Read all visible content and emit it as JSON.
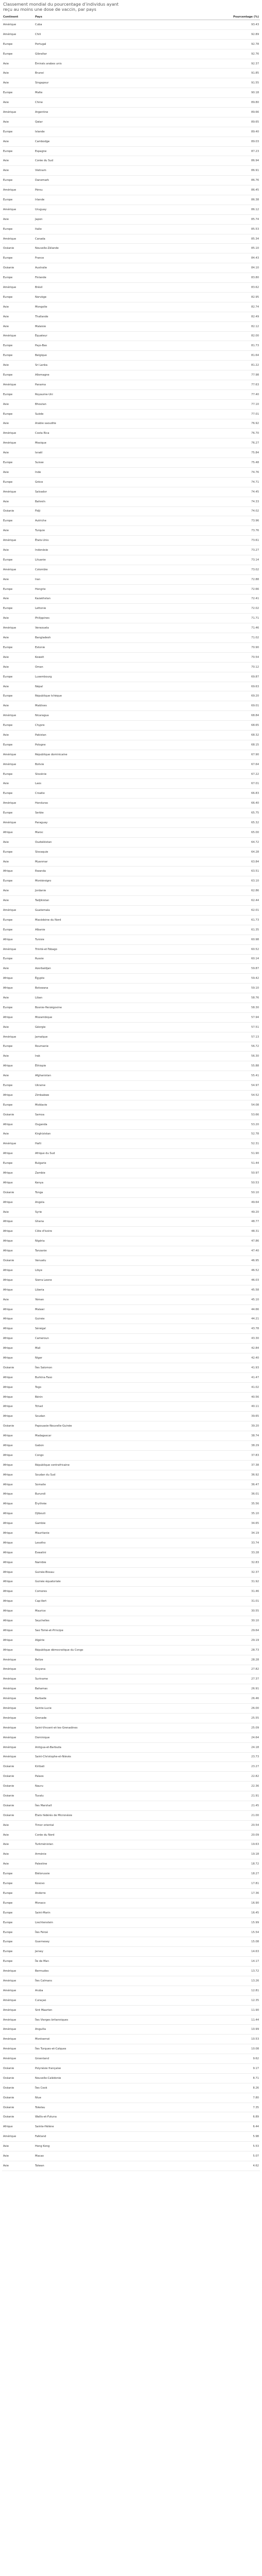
{
  "title": "Classement mondial du pourcentage d’individus ayant reçu au moins une dose de vaccin, par pays",
  "table": {
    "headers": [
      "Continent",
      "Pays",
      "Pourcentage (%)"
    ],
    "rows": [
      [
        "Amérique",
        "Cuba",
        "93.43"
      ],
      [
        "Amérique",
        "Chili",
        "92.89"
      ],
      [
        "Europe",
        "Portugal",
        "92.78"
      ],
      [
        "Europe",
        "Gibraltar",
        "92.76"
      ],
      [
        "Asie",
        "Émirats arabes unis",
        "92.37"
      ],
      [
        "Asie",
        "Brunei",
        "91.85"
      ],
      [
        "Asie",
        "Singapour",
        "91.55"
      ],
      [
        "Europe",
        "Malte",
        "90.18"
      ],
      [
        "Asie",
        "Chine",
        "89.80"
      ],
      [
        "Amérique",
        "Argentine",
        "89.66"
      ],
      [
        "Asie",
        "Qatar",
        "89.65"
      ],
      [
        "Europe",
        "Islande",
        "89.40"
      ],
      [
        "Asie",
        "Cambodge",
        "89.03"
      ],
      [
        "Europe",
        "Espagne",
        "87.23"
      ],
      [
        "Asie",
        "Corée du Sud",
        "86.94"
      ],
      [
        "Asie",
        "Vietnam",
        "86.91"
      ],
      [
        "Europe",
        "Danemark",
        "86.76"
      ],
      [
        "Amérique",
        "Pérou",
        "86.45"
      ],
      [
        "Europe",
        "Irlande",
        "86.38"
      ],
      [
        "Amérique",
        "Uruguay",
        "86.12"
      ],
      [
        "Asie",
        "Japon",
        "85.74"
      ],
      [
        "Europe",
        "Italie",
        "85.53"
      ],
      [
        "Amérique",
        "Canada",
        "85.34"
      ],
      [
        "Océanie",
        "Nouvelle-Zélande",
        "85.10"
      ],
      [
        "Europe",
        "France",
        "84.43"
      ],
      [
        "Océanie",
        "Australie",
        "84.10"
      ],
      [
        "Europe",
        "Finlande",
        "83.80"
      ],
      [
        "Amérique",
        "Brésil",
        "83.62"
      ],
      [
        "Europe",
        "Norvège",
        "82.95"
      ],
      [
        "Asie",
        "Mongolie",
        "82.74"
      ],
      [
        "Asie",
        "Thaïlande",
        "82.49"
      ],
      [
        "Asie",
        "Malaisie",
        "82.12"
      ],
      [
        "Amérique",
        "Équateur",
        "82.00"
      ],
      [
        "Europe",
        "Pays-Bas",
        "81.73"
      ],
      [
        "Europe",
        "Belgique",
        "81.64"
      ],
      [
        "Asie",
        "Sri Lanka",
        "81.22"
      ],
      [
        "Europe",
        "Allemagne",
        "77.98"
      ],
      [
        "Amérique",
        "Panama",
        "77.63"
      ],
      [
        "Europe",
        "Royaume-Uni",
        "77.40"
      ],
      [
        "Asie",
        "Bhoutan",
        "77.10"
      ],
      [
        "Europe",
        "Suède",
        "77.01"
      ],
      [
        "Asie",
        "Arabie saoudite",
        "76.92"
      ],
      [
        "Amérique",
        "Costa Rica",
        "76.70"
      ],
      [
        "Amérique",
        "Mexique",
        "76.27"
      ],
      [
        "Asie",
        "Israël",
        "75.84"
      ],
      [
        "Europe",
        "Suisse",
        "75.48"
      ],
      [
        "Asie",
        "Inde",
        "74.76"
      ],
      [
        "Europe",
        "Grèce",
        "74.71"
      ],
      [
        "Amérique",
        "Salvador",
        "74.45"
      ],
      [
        "Asie",
        "Bahreïn",
        "74.33"
      ],
      [
        "Océanie",
        "Fidji",
        "74.02"
      ],
      [
        "Europe",
        "Autriche",
        "73.96"
      ],
      [
        "Asie",
        "Turquie",
        "73.76"
      ],
      [
        "Amérique",
        "États-Unis",
        "73.61"
      ],
      [
        "Asie",
        "Indonésie",
        "73.27"
      ],
      [
        "Europe",
        "Lituanie",
        "73.14"
      ],
      [
        "Amérique",
        "Colombie",
        "73.02"
      ],
      [
        "Asie",
        "Iran",
        "72.88"
      ],
      [
        "Europe",
        "Hongrie",
        "72.66"
      ],
      [
        "Asie",
        "Kazakhstan",
        "72.41"
      ],
      [
        "Europe",
        "Lettonie",
        "72.02"
      ],
      [
        "Asie",
        "Philippines",
        "71.71"
      ],
      [
        "Amérique",
        "Venezuela",
        "71.46"
      ],
      [
        "Asie",
        "Bangladesh",
        "71.02"
      ],
      [
        "Europe",
        "Estonie",
        "70.90"
      ],
      [
        "Asie",
        "Koweït",
        "70.54"
      ],
      [
        "Asie",
        "Oman",
        "70.12"
      ],
      [
        "Europe",
        "Luxembourg",
        "69.87"
      ],
      [
        "Asie",
        "Népal",
        "69.63"
      ],
      [
        "Europe",
        "République tchèque",
        "69.20"
      ],
      [
        "Asie",
        "Maldives",
        "69.01"
      ],
      [
        "Amérique",
        "Nicaragua",
        "68.84"
      ],
      [
        "Europe",
        "Chypre",
        "68.65"
      ],
      [
        "Asie",
        "Pakistan",
        "68.32"
      ],
      [
        "Europe",
        "Pologne",
        "68.15"
      ],
      [
        "Amérique",
        "République dominicaine",
        "67.90"
      ],
      [
        "Amérique",
        "Bolivie",
        "67.64"
      ],
      [
        "Europe",
        "Slovénie",
        "67.22"
      ],
      [
        "Asie",
        "Laos",
        "67.01"
      ],
      [
        "Europe",
        "Croatie",
        "66.83"
      ],
      [
        "Amérique",
        "Honduras",
        "66.40"
      ],
      [
        "Europe",
        "Serbie",
        "65.75"
      ],
      [
        "Amérique",
        "Paraguay",
        "65.32"
      ],
      [
        "Afrique",
        "Maroc",
        "65.00"
      ],
      [
        "Asie",
        "Ouzbékistan",
        "64.72"
      ],
      [
        "Europe",
        "Slovaquie",
        "64.28"
      ],
      [
        "Asie",
        "Myanmar",
        "63.84"
      ],
      [
        "Afrique",
        "Rwanda",
        "63.51"
      ],
      [
        "Europe",
        "Monténégro",
        "63.10"
      ],
      [
        "Asie",
        "Jordanie",
        "62.86"
      ],
      [
        "Asie",
        "Tadjikistan",
        "62.44"
      ],
      [
        "Amérique",
        "Guatemala",
        "62.01"
      ],
      [
        "Europe",
        "Macédoine du Nord",
        "61.73"
      ],
      [
        "Europe",
        "Albanie",
        "61.35"
      ],
      [
        "Afrique",
        "Tunisie",
        "60.98"
      ],
      [
        "Amérique",
        "Trinité-et-Tobago",
        "60.52"
      ],
      [
        "Europe",
        "Russie",
        "60.14"
      ],
      [
        "Asie",
        "Azerbaïdjan",
        "59.87"
      ],
      [
        "Afrique",
        "Égypte",
        "59.42"
      ],
      [
        "Afrique",
        "Botswana",
        "59.10"
      ],
      [
        "Asie",
        "Liban",
        "58.76"
      ],
      [
        "Europe",
        "Bosnie-Herzégovine",
        "58.30"
      ],
      [
        "Afrique",
        "Mozambique",
        "57.94"
      ],
      [
        "Asie",
        "Géorgie",
        "57.51"
      ],
      [
        "Amérique",
        "Jamaïque",
        "57.13"
      ],
      [
        "Europe",
        "Roumanie",
        "56.72"
      ],
      [
        "Asie",
        "Irak",
        "56.30"
      ],
      [
        "Afrique",
        "Éthiopie",
        "55.88"
      ],
      [
        "Asie",
        "Afghanistan",
        "55.41"
      ],
      [
        "Europe",
        "Ukraine",
        "54.97"
      ],
      [
        "Afrique",
        "Zimbabwe",
        "54.52"
      ],
      [
        "Europe",
        "Moldavie",
        "54.08"
      ],
      [
        "Océanie",
        "Samoa",
        "53.66"
      ],
      [
        "Afrique",
        "Ouganda",
        "53.20"
      ],
      [
        "Asie",
        "Kirghizistan",
        "52.78"
      ],
      [
        "Amérique",
        "Haïti",
        "52.31"
      ],
      [
        "Afrique",
        "Afrique du Sud",
        "51.90"
      ],
      [
        "Europe",
        "Bulgarie",
        "51.44"
      ],
      [
        "Afrique",
        "Zambie",
        "50.97"
      ],
      [
        "Afrique",
        "Kenya",
        "50.53"
      ],
      [
        "Océanie",
        "Tonga",
        "50.10"
      ],
      [
        "Afrique",
        "Angola",
        "49.64"
      ],
      [
        "Asie",
        "Syrie",
        "49.20"
      ],
      [
        "Afrique",
        "Ghana",
        "48.77"
      ],
      [
        "Afrique",
        "Côte d'Ivoire",
        "48.31"
      ],
      [
        "Afrique",
        "Nigéria",
        "47.86"
      ],
      [
        "Afrique",
        "Tanzanie",
        "47.40"
      ],
      [
        "Océanie",
        "Vanuatu",
        "46.95"
      ],
      [
        "Afrique",
        "Libye",
        "46.52"
      ],
      [
        "Afrique",
        "Sierra Leone",
        "46.03"
      ],
      [
        "Afrique",
        "Liberia",
        "45.58"
      ],
      [
        "Asie",
        "Yémen",
        "45.10"
      ],
      [
        "Afrique",
        "Malawi",
        "44.66"
      ],
      [
        "Afrique",
        "Guinée",
        "44.21"
      ],
      [
        "Afrique",
        "Sénégal",
        "43.78"
      ],
      [
        "Afrique",
        "Cameroun",
        "43.30"
      ],
      [
        "Afrique",
        "Mali",
        "42.84"
      ],
      [
        "Afrique",
        "Niger",
        "42.40"
      ],
      [
        "Océanie",
        "Îles Salomon",
        "41.93"
      ],
      [
        "Afrique",
        "Burkina Faso",
        "41.47"
      ],
      [
        "Afrique",
        "Togo",
        "41.02"
      ],
      [
        "Afrique",
        "Bénin",
        "40.56"
      ],
      [
        "Afrique",
        "Tchad",
        "40.11"
      ],
      [
        "Afrique",
        "Soudan",
        "39.65"
      ],
      [
        "Océanie",
        "Papouasie-Nouvelle-Guinée",
        "39.20"
      ],
      [
        "Afrique",
        "Madagascar",
        "38.74"
      ],
      [
        "Afrique",
        "Gabon",
        "38.29"
      ],
      [
        "Afrique",
        "Congo",
        "37.83"
      ],
      [
        "Afrique",
        "République centrafricaine",
        "37.38"
      ],
      [
        "Afrique",
        "Soudan du Sud",
        "36.92"
      ],
      [
        "Afrique",
        "Somalie",
        "36.47"
      ],
      [
        "Afrique",
        "Burundi",
        "36.01"
      ],
      [
        "Afrique",
        "Érythrée",
        "35.56"
      ],
      [
        "Afrique",
        "Djibouti",
        "35.10"
      ],
      [
        "Afrique",
        "Gambie",
        "34.65"
      ],
      [
        "Afrique",
        "Mauritanie",
        "34.19"
      ],
      [
        "Afrique",
        "Lesotho",
        "33.74"
      ],
      [
        "Afrique",
        "Eswatini",
        "33.28"
      ],
      [
        "Afrique",
        "Namibie",
        "32.83"
      ],
      [
        "Afrique",
        "Guinée-Bissau",
        "32.37"
      ],
      [
        "Afrique",
        "Guinée équatoriale",
        "31.92"
      ],
      [
        "Afrique",
        "Comores",
        "31.46"
      ],
      [
        "Afrique",
        "Cap-Vert",
        "31.01"
      ],
      [
        "Afrique",
        "Maurice",
        "30.55"
      ],
      [
        "Afrique",
        "Seychelles",
        "30.10"
      ],
      [
        "Afrique",
        "Sao Tomé-et-Principe",
        "29.64"
      ],
      [
        "Afrique",
        "Algérie",
        "29.19"
      ],
      [
        "Afrique",
        "République démocratique du Congo",
        "28.73"
      ],
      [
        "Amérique",
        "Belize",
        "28.28"
      ],
      [
        "Amérique",
        "Guyana",
        "27.82"
      ],
      [
        "Amérique",
        "Suriname",
        "27.37"
      ],
      [
        "Amérique",
        "Bahamas",
        "26.91"
      ],
      [
        "Amérique",
        "Barbade",
        "26.46"
      ],
      [
        "Amérique",
        "Sainte-Lucie",
        "26.00"
      ],
      [
        "Amérique",
        "Grenade",
        "25.55"
      ],
      [
        "Amérique",
        "Saint-Vincent-et-les-Grenadines",
        "25.09"
      ],
      [
        "Amérique",
        "Dominique",
        "24.64"
      ],
      [
        "Amérique",
        "Antigua-et-Barbuda",
        "24.18"
      ],
      [
        "Amérique",
        "Saint-Christophe-et-Niévès",
        "23.73"
      ],
      [
        "Océanie",
        "Kiribati",
        "23.27"
      ],
      [
        "Océanie",
        "Palaos",
        "22.82"
      ],
      [
        "Océanie",
        "Nauru",
        "22.36"
      ],
      [
        "Océanie",
        "Tuvalu",
        "21.91"
      ],
      [
        "Océanie",
        "Îles Marshall",
        "21.45"
      ],
      [
        "Océanie",
        "États fédérés de Micronésie",
        "21.00"
      ],
      [
        "Asie",
        "Timor oriental",
        "20.54"
      ],
      [
        "Asie",
        "Corée du Nord",
        "20.09"
      ],
      [
        "Asie",
        "Turkménistan",
        "19.63"
      ],
      [
        "Asie",
        "Arménie",
        "19.18"
      ],
      [
        "Asie",
        "Palestine",
        "18.72"
      ],
      [
        "Europe",
        "Biélorussie",
        "18.27"
      ],
      [
        "Europe",
        "Kosovo",
        "17.81"
      ],
      [
        "Europe",
        "Andorre",
        "17.36"
      ],
      [
        "Europe",
        "Monaco",
        "16.90"
      ],
      [
        "Europe",
        "Saint-Marin",
        "16.45"
      ],
      [
        "Europe",
        "Liechtenstein",
        "15.99"
      ],
      [
        "Europe",
        "Îles Féroé",
        "15.54"
      ],
      [
        "Europe",
        "Guernesey",
        "15.08"
      ],
      [
        "Europe",
        "Jersey",
        "14.63"
      ],
      [
        "Europe",
        "Île de Man",
        "14.17"
      ],
      [
        "Amérique",
        "Bermudes",
        "13.72"
      ],
      [
        "Amérique",
        "Îles Caïmans",
        "13.26"
      ],
      [
        "Amérique",
        "Aruba",
        "12.81"
      ],
      [
        "Amérique",
        "Curaçao",
        "12.35"
      ],
      [
        "Amérique",
        "Sint Maarten",
        "11.90"
      ],
      [
        "Amérique",
        "Îles Vierges britanniques",
        "11.44"
      ],
      [
        "Amérique",
        "Anguilla",
        "10.99"
      ],
      [
        "Amérique",
        "Montserrat",
        "10.53"
      ],
      [
        "Amérique",
        "Îles Turques-et-Caïques",
        "10.08"
      ],
      [
        "Amérique",
        "Groenland",
        "9.62"
      ],
      [
        "Océanie",
        "Polynésie française",
        "9.17"
      ],
      [
        "Océanie",
        "Nouvelle-Calédonie",
        "8.71"
      ],
      [
        "Océanie",
        "Îles Cook",
        "8.26"
      ],
      [
        "Océanie",
        "Niue",
        "7.80"
      ],
      [
        "Océanie",
        "Tokelau",
        "7.35"
      ],
      [
        "Océanie",
        "Wallis-et-Futuna",
        "6.89"
      ],
      [
        "Afrique",
        "Sainte-Hélène",
        "6.44"
      ],
      [
        "Amérique",
        "Falkland",
        "5.98"
      ],
      [
        "Asie",
        "Hong Kong",
        "5.53"
      ],
      [
        "Asie",
        "Macao",
        "5.07"
      ],
      [
        "Asie",
        "Taïwan",
        "4.62"
      ]
    ]
  }
}
